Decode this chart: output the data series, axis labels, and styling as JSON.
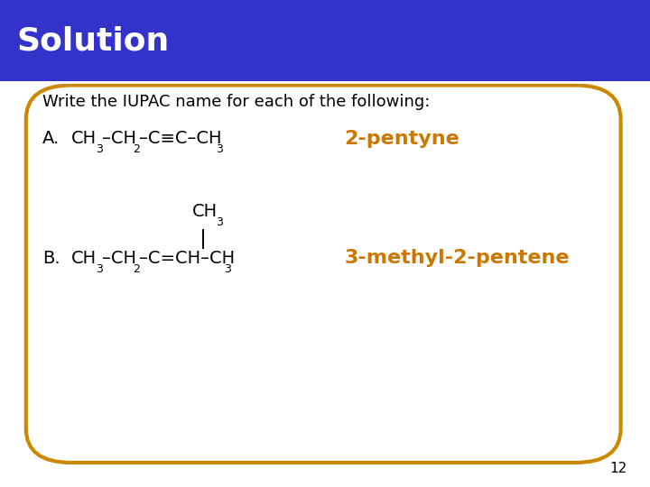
{
  "title": "Solution",
  "title_bg_color": "#3333CC",
  "title_text_color": "#FFFFFF",
  "title_fontsize": 26,
  "slide_bg_color": "#FFFFFF",
  "border_color": "#CC8800",
  "header_line_color": "#FFFFFF",
  "intro_text": "Write the IUPAC name for each of the following:",
  "text_color": "#000000",
  "answer_color": "#CC7700",
  "answer_A": "2-pentyne",
  "answer_B": "3-methyl-2-pentene",
  "page_number": "12",
  "main_fontsize": 13,
  "formula_fontsize": 14,
  "sub_fontsize": 9,
  "answer_fontsize": 16
}
